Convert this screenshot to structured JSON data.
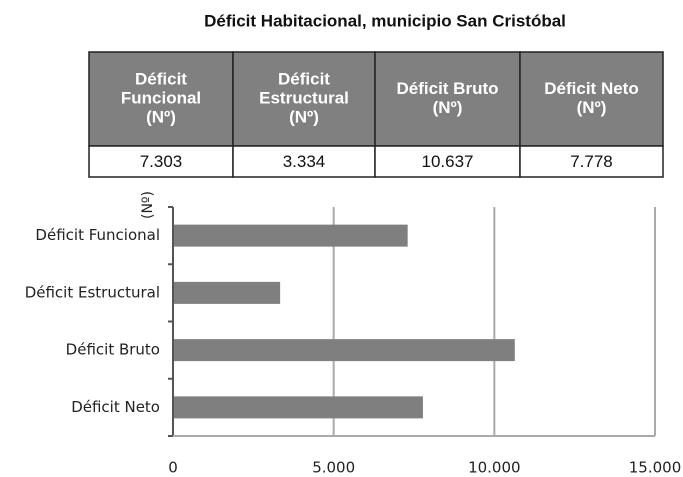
{
  "title": "Déficit Habitacional, municipio San Cristóbal",
  "table": {
    "headers": [
      [
        "Déficit",
        "Funcional",
        "(Nº)"
      ],
      [
        "Déficit",
        "Estructural",
        "(Nº)"
      ],
      [
        "Déficit Bruto",
        "(Nº)"
      ],
      [
        "Déficit Neto",
        "(Nº)"
      ]
    ],
    "rows": [
      [
        "7.303",
        "3.334",
        "10.637",
        "7.778"
      ]
    ]
  },
  "chart_data": {
    "type": "hbar",
    "y_label": "(Nº)",
    "categories": [
      "Déficit Funcional",
      "Déficit Estructural",
      "Déficit Bruto",
      "Déficit Neto"
    ],
    "values": [
      7303,
      3334,
      10637,
      7778
    ],
    "color": "#7f7f7f",
    "xlim": [
      0,
      15000
    ],
    "xticks": [
      0,
      {
        "value": 5000,
        "label": "5.000"
      },
      {
        "value": 10000,
        "label": "10.000"
      },
      {
        "value": 15000,
        "label": "15.000"
      }
    ],
    "grid": true
  }
}
